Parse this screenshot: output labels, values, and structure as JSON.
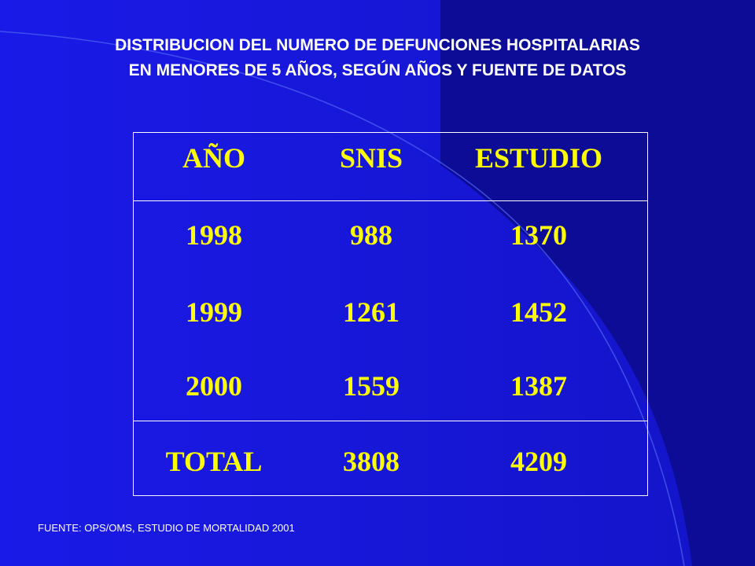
{
  "colors": {
    "background": "#1919e6",
    "background_dark": "#0a0a8c",
    "title_text": "#ffffff",
    "table_text": "#ffff00",
    "border": "#ffffff"
  },
  "title": {
    "line1": "DISTRIBUCION DEL NUMERO DE DEFUNCIONES HOSPITALARIAS",
    "line2": "EN MENORES DE 5 AÑOS, SEGÚN AÑOS Y  FUENTE  DE DATOS"
  },
  "table": {
    "headers": [
      "AÑO",
      "SNIS",
      "ESTUDIO"
    ],
    "rows": [
      [
        "1998",
        "988",
        "1370"
      ],
      [
        "1999",
        "1261",
        "1452"
      ],
      [
        "2000",
        "1559",
        "1387"
      ]
    ],
    "total": [
      "TOTAL",
      "3808",
      "4209"
    ]
  },
  "source": "FUENTE:  OPS/OMS, ESTUDIO DE MORTALIDAD 2001"
}
